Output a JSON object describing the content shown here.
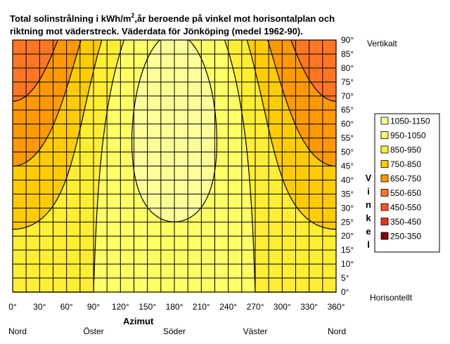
{
  "chart_data": {
    "type": "heatmap",
    "title_line1": "Total solinstrålning i kWh/m",
    "title_sup": "2",
    "title_line1_rest": ",år beroende på vinkel mot horisontalplan och",
    "title_line2": "riktning mot väderstreck. Väderdata för Jönköping (medel 1962-90).",
    "xlabel": "Azimut",
    "ylabel": "Vinkel",
    "x_ticks": [
      "0°",
      "30°",
      "60°",
      "90°",
      "120°",
      "150°",
      "180°",
      "210°",
      "240°",
      "270°",
      "300°",
      "330°",
      "360°"
    ],
    "y_ticks": [
      "0°",
      "5°",
      "10°",
      "15°",
      "20°",
      "25°",
      "30°",
      "35°",
      "40°",
      "45°",
      "50°",
      "55°",
      "60°",
      "65°",
      "70°",
      "75°",
      "80°",
      "85°",
      "90°"
    ],
    "xlim": [
      0,
      360
    ],
    "ylim": [
      0,
      90
    ],
    "x_directions": [
      {
        "label": "Nord",
        "x": 0
      },
      {
        "label": "Öster",
        "x": 90
      },
      {
        "label": "Söder",
        "x": 180
      },
      {
        "label": "Väster",
        "x": 270
      },
      {
        "label": "Nord",
        "x": 360
      }
    ],
    "y_end_labels": {
      "top": "Vertikalt",
      "bottom": "Horisontellt"
    },
    "legend": [
      {
        "label": "1050-1150",
        "color": "#ffff99"
      },
      {
        "label": "950-1050",
        "color": "#ffff66"
      },
      {
        "label": "850-950",
        "color": "#ffee33"
      },
      {
        "label": "750-850",
        "color": "#ffcc00"
      },
      {
        "label": "650-750",
        "color": "#ff9900"
      },
      {
        "label": "550-650",
        "color": "#ff7722"
      },
      {
        "label": "450-550",
        "color": "#ff5522"
      },
      {
        "label": "350-450",
        "color": "#e8331a"
      },
      {
        "label": "250-350",
        "color": "#8b0000"
      }
    ],
    "grid": true,
    "legend_placement": "right"
  }
}
